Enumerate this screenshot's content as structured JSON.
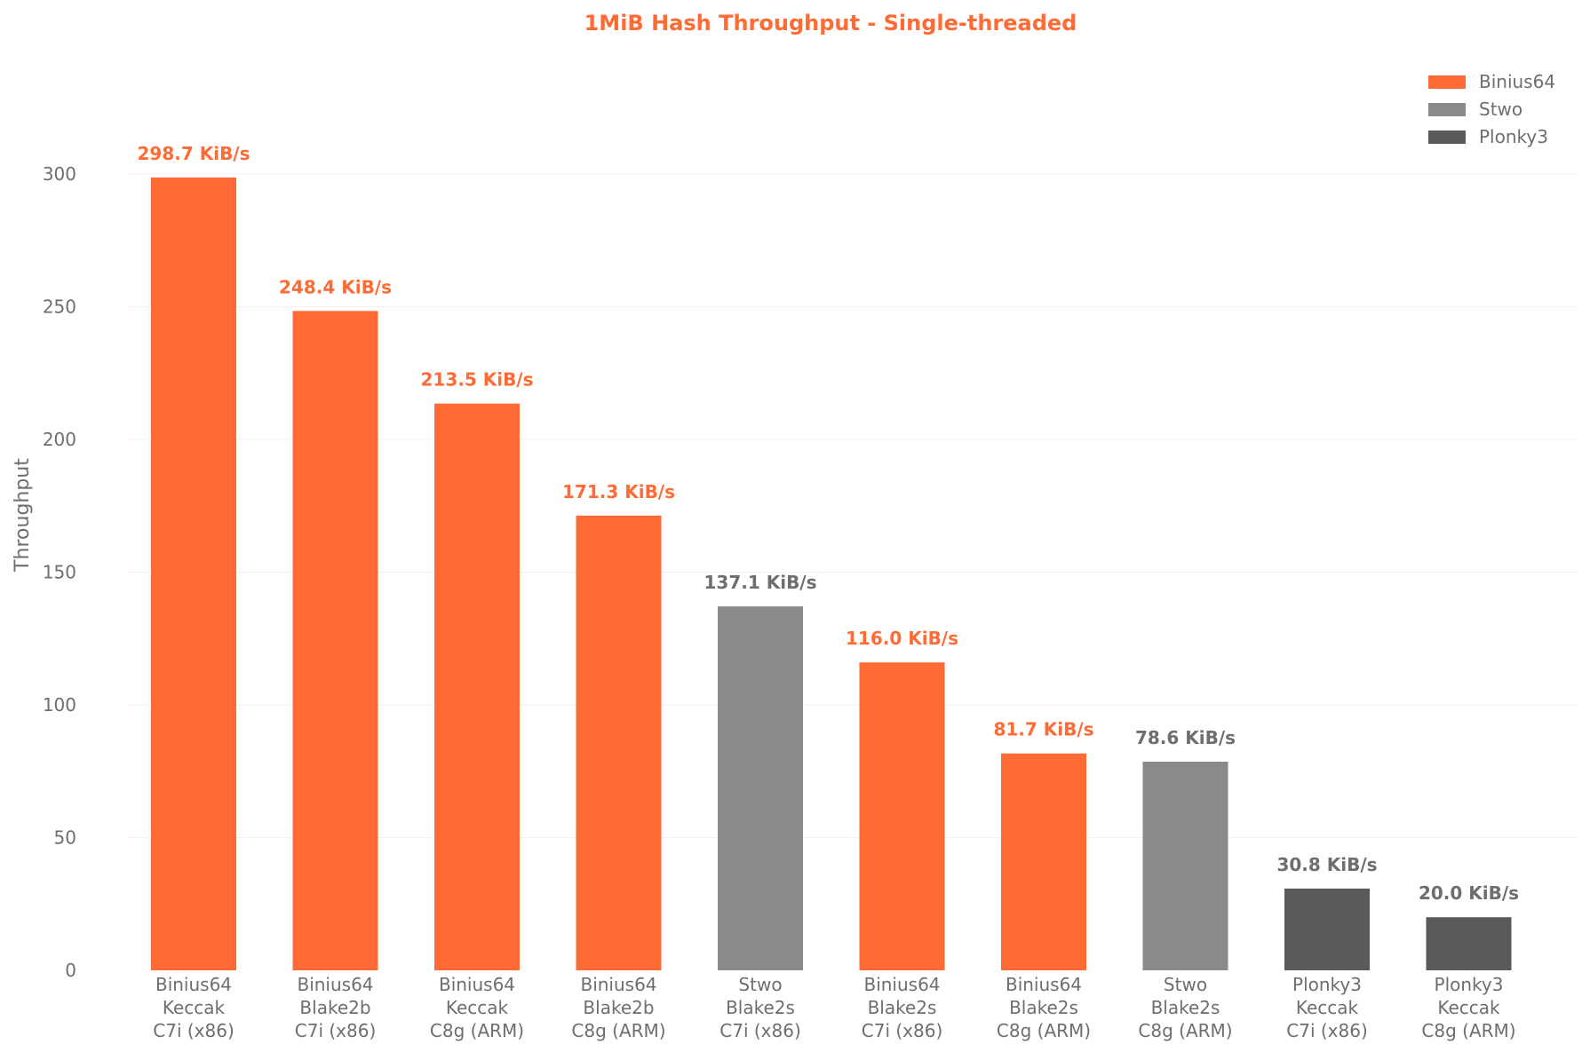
{
  "chart_data": {
    "type": "bar",
    "title": "1MiB Hash Throughput - Single-threaded",
    "ylabel": "Throughput",
    "ylim": [
      0,
      300
    ],
    "yticks": [
      "0",
      "50",
      "100",
      "150",
      "200",
      "250",
      "300"
    ],
    "grid": true,
    "legend_position": "top-right",
    "colors": {
      "Binius64": "#ff6b35",
      "Stwo": "#8a8a8a",
      "Plonky3": "#5a5a5a",
      "title": "#ff6b35",
      "text": "#6e6e6e"
    },
    "legend": [
      "Binius64",
      "Stwo",
      "Plonky3"
    ],
    "categories": [
      [
        "Binius64",
        "Keccak",
        "C7i (x86)"
      ],
      [
        "Binius64",
        "Blake2b",
        "C7i (x86)"
      ],
      [
        "Binius64",
        "Keccak",
        "C8g (ARM)"
      ],
      [
        "Binius64",
        "Blake2b",
        "C8g (ARM)"
      ],
      [
        "Stwo",
        "Blake2s",
        "C7i (x86)"
      ],
      [
        "Binius64",
        "Blake2s",
        "C7i (x86)"
      ],
      [
        "Binius64",
        "Blake2s",
        "C8g (ARM)"
      ],
      [
        "Stwo",
        "Blake2s",
        "C8g (ARM)"
      ],
      [
        "Plonky3",
        "Keccak",
        "C7i (x86)"
      ],
      [
        "Plonky3",
        "Keccak",
        "C8g (ARM)"
      ]
    ],
    "series_of_bar": [
      "Binius64",
      "Binius64",
      "Binius64",
      "Binius64",
      "Stwo",
      "Binius64",
      "Binius64",
      "Stwo",
      "Plonky3",
      "Plonky3"
    ],
    "values": [
      298.7,
      248.4,
      213.5,
      171.3,
      137.1,
      116.0,
      81.7,
      78.6,
      30.8,
      20.0
    ],
    "value_labels": [
      "298.7 KiB/s",
      "248.4 KiB/s",
      "213.5 KiB/s",
      "171.3 KiB/s",
      "137.1 KiB/s",
      "116.0 KiB/s",
      "81.7 KiB/s",
      "78.6 KiB/s",
      "30.8 KiB/s",
      "20.0 KiB/s"
    ]
  }
}
